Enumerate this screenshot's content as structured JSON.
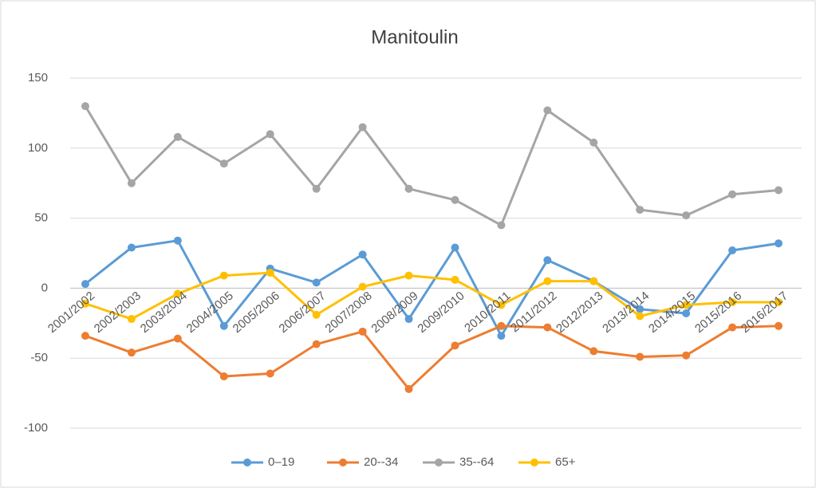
{
  "chart_data": {
    "type": "line",
    "title": "Manitoulin",
    "categories": [
      "2001/2002",
      "2002/2003",
      "2003/2004",
      "2004/2005",
      "2005/2006",
      "2006/2007",
      "2007/2008",
      "2008/2009",
      "2009/2010",
      "2010/2011",
      "2011/2012",
      "2012/2013",
      "2013/2014",
      "2014/2015",
      "2015/2016",
      "2016/2017"
    ],
    "series": [
      {
        "name": "0–19",
        "color": "#5b9bd5",
        "values": [
          3,
          29,
          34,
          -27,
          14,
          4,
          24,
          -22,
          29,
          -34,
          20,
          5,
          -15,
          -18,
          27,
          32
        ]
      },
      {
        "name": "20--34",
        "color": "#ed7d31",
        "values": [
          -34,
          -46,
          -36,
          -63,
          -61,
          -40,
          -31,
          -72,
          -41,
          -27,
          -28,
          -45,
          -49,
          -48,
          -28,
          -27
        ]
      },
      {
        "name": "35--64",
        "color": "#a5a5a5",
        "values": [
          130,
          75,
          108,
          89,
          110,
          71,
          115,
          71,
          63,
          45,
          127,
          104,
          56,
          52,
          67,
          70
        ]
      },
      {
        "name": "65+",
        "color": "#ffc000",
        "values": [
          -11,
          -22,
          -4,
          9,
          11,
          -19,
          1,
          9,
          6,
          -12,
          5,
          5,
          -20,
          -12,
          -10,
          -10
        ]
      }
    ],
    "ylim": [
      -100,
      150
    ],
    "yticks": [
      -100,
      -50,
      0,
      50,
      100,
      150
    ],
    "grid": true,
    "legend": "bottom"
  }
}
